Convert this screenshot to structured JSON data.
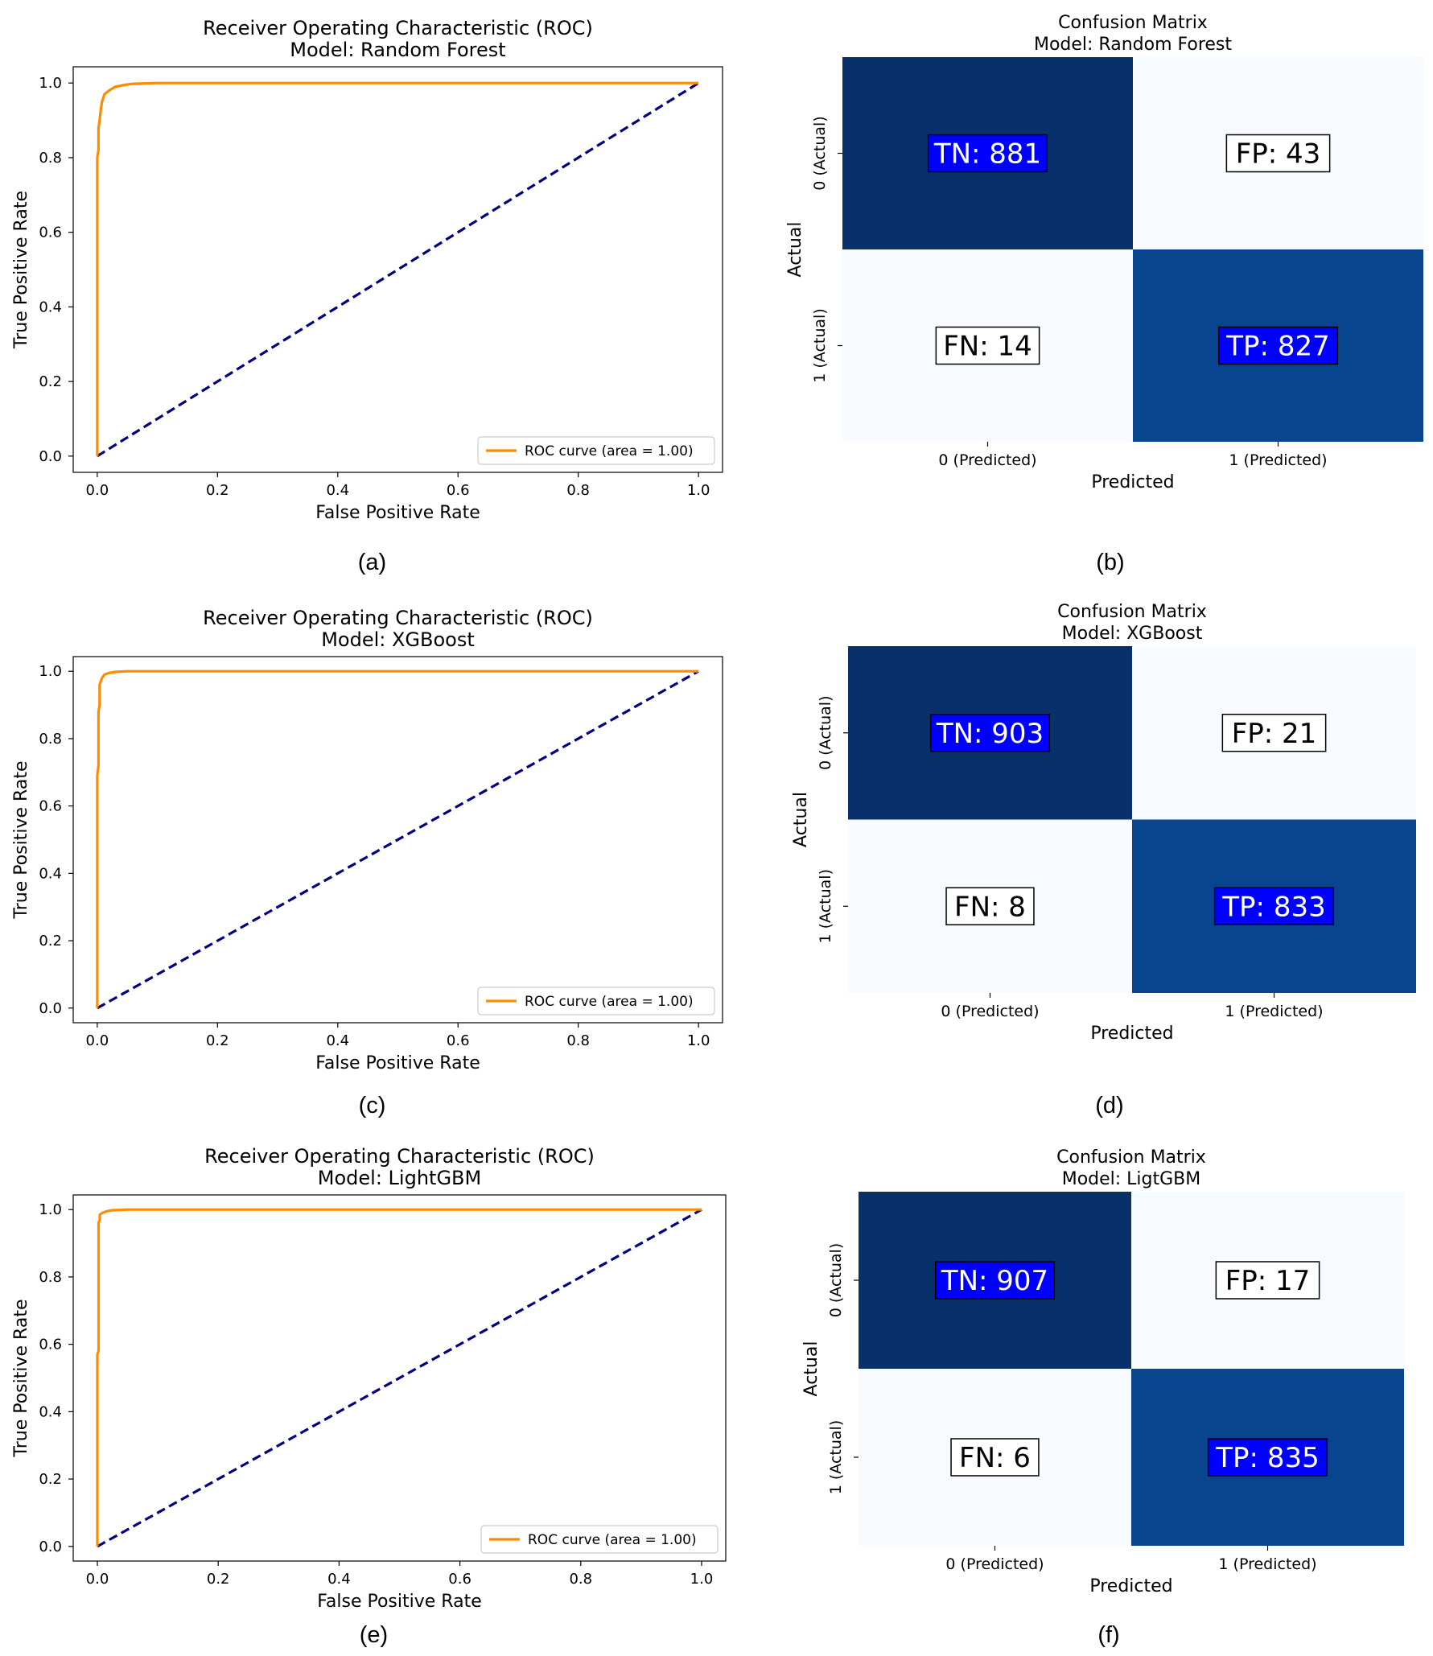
{
  "figure": {
    "panels": [
      {
        "id": "a",
        "caption": "(a)"
      },
      {
        "id": "b",
        "caption": "(b)"
      },
      {
        "id": "c",
        "caption": "(c)"
      },
      {
        "id": "d",
        "caption": "(d)"
      },
      {
        "id": "e",
        "caption": "(e)"
      },
      {
        "id": "f",
        "caption": "(f)"
      }
    ]
  },
  "chart_data": [
    {
      "type": "line",
      "panel": "a",
      "title": "Receiver Operating Characteristic (ROC)",
      "subtitle": "Model: Random Forest",
      "xlabel": "False Positive Rate",
      "ylabel": "True Positive Rate",
      "xlim": [
        0,
        1
      ],
      "ylim": [
        0,
        1
      ],
      "xticks": [
        "0.0",
        "0.2",
        "0.4",
        "0.6",
        "0.8",
        "1.0"
      ],
      "yticks": [
        "0.0",
        "0.2",
        "0.4",
        "0.6",
        "0.8",
        "1.0"
      ],
      "legend": "ROC curve (area = 1.00)",
      "legend_position": "lower-right",
      "series": [
        {
          "name": "ROC curve (area = 1.00)",
          "color": "#ff8c00",
          "x": [
            0,
            0,
            0.002,
            0.002,
            0.004,
            0.006,
            0.008,
            0.012,
            0.02,
            0.03,
            0.045,
            0.06,
            0.1,
            1.0
          ],
          "y": [
            0,
            0.8,
            0.82,
            0.88,
            0.9,
            0.93,
            0.95,
            0.97,
            0.98,
            0.99,
            0.995,
            0.998,
            1.0,
            1.0
          ]
        },
        {
          "name": "chance",
          "color": "#000080",
          "dashed": true,
          "x": [
            0,
            1
          ],
          "y": [
            0,
            1
          ]
        }
      ]
    },
    {
      "type": "heatmap",
      "panel": "b",
      "title": "Confusion Matrix",
      "subtitle": "Model: Random Forest",
      "xlabel": "Predicted",
      "ylabel": "Actual",
      "col_labels": [
        "0 (Predicted)",
        "1 (Predicted)"
      ],
      "row_labels": [
        "0 (Actual)",
        "1 (Actual)"
      ],
      "cells": [
        {
          "label": "TN: 881",
          "value": 881,
          "color": "#08306b",
          "badge": "#0000ff",
          "text_color": "#ffffff"
        },
        {
          "label": "FP: 43",
          "value": 43,
          "color": "#f7fbff",
          "badge": "#ffffff",
          "text_color": "#000000"
        },
        {
          "label": "FN: 14",
          "value": 14,
          "color": "#f7fbff",
          "badge": "#ffffff",
          "text_color": "#000000"
        },
        {
          "label": "TP: 827",
          "value": 827,
          "color": "#08458e",
          "badge": "#0000ff",
          "text_color": "#ffffff"
        }
      ]
    },
    {
      "type": "line",
      "panel": "c",
      "title": "Receiver Operating Characteristic (ROC)",
      "subtitle": "Model: XGBoost",
      "xlabel": "False Positive Rate",
      "ylabel": "True Positive Rate",
      "xlim": [
        0,
        1
      ],
      "ylim": [
        0,
        1
      ],
      "xticks": [
        "0.0",
        "0.2",
        "0.4",
        "0.6",
        "0.8",
        "1.0"
      ],
      "yticks": [
        "0.0",
        "0.2",
        "0.4",
        "0.6",
        "0.8",
        "1.0"
      ],
      "legend": "ROC curve (area = 1.00)",
      "legend_position": "lower-right",
      "series": [
        {
          "name": "ROC curve (area = 1.00)",
          "color": "#ff8c00",
          "x": [
            0,
            0,
            0.002,
            0.002,
            0.004,
            0.004,
            0.008,
            0.012,
            0.02,
            0.03,
            0.05,
            1.0
          ],
          "y": [
            0,
            0.69,
            0.72,
            0.88,
            0.9,
            0.96,
            0.98,
            0.99,
            0.995,
            0.998,
            1.0,
            1.0
          ]
        },
        {
          "name": "chance",
          "color": "#000080",
          "dashed": true,
          "x": [
            0,
            1
          ],
          "y": [
            0,
            1
          ]
        }
      ]
    },
    {
      "type": "heatmap",
      "panel": "d",
      "title": "Confusion Matrix",
      "subtitle": "Model: XGBoost",
      "xlabel": "Predicted",
      "ylabel": "Actual",
      "col_labels": [
        "0 (Predicted)",
        "1 (Predicted)"
      ],
      "row_labels": [
        "0 (Actual)",
        "1 (Actual)"
      ],
      "cells": [
        {
          "label": "TN: 903",
          "value": 903,
          "color": "#08306b",
          "badge": "#0000ff",
          "text_color": "#ffffff"
        },
        {
          "label": "FP: 21",
          "value": 21,
          "color": "#f7fbff",
          "badge": "#ffffff",
          "text_color": "#000000"
        },
        {
          "label": "FN: 8",
          "value": 8,
          "color": "#f7fbff",
          "badge": "#ffffff",
          "text_color": "#000000"
        },
        {
          "label": "TP: 833",
          "value": 833,
          "color": "#08458e",
          "badge": "#0000ff",
          "text_color": "#ffffff"
        }
      ]
    },
    {
      "type": "line",
      "panel": "e",
      "title": "Receiver Operating Characteristic (ROC)",
      "subtitle": "Model: LightGBM",
      "xlabel": "False Positive Rate",
      "ylabel": "True Positive Rate",
      "xlim": [
        0,
        1
      ],
      "ylim": [
        0,
        1
      ],
      "xticks": [
        "0.0",
        "0.2",
        "0.4",
        "0.6",
        "0.8",
        "1.0"
      ],
      "yticks": [
        "0.0",
        "0.2",
        "0.4",
        "0.6",
        "0.8",
        "1.0"
      ],
      "legend": "ROC curve (area = 1.00)",
      "legend_position": "lower-right",
      "series": [
        {
          "name": "ROC curve (area = 1.00)",
          "color": "#ff8c00",
          "x": [
            0,
            0,
            0.002,
            0.002,
            0.004,
            0.004,
            0.008,
            0.015,
            0.025,
            0.05,
            1.0
          ],
          "y": [
            0,
            0.57,
            0.58,
            0.96,
            0.97,
            0.985,
            0.99,
            0.995,
            0.998,
            1.0,
            1.0
          ]
        },
        {
          "name": "chance",
          "color": "#000080",
          "dashed": true,
          "x": [
            0,
            1
          ],
          "y": [
            0,
            1
          ]
        }
      ]
    },
    {
      "type": "heatmap",
      "panel": "f",
      "title": "Confusion Matrix",
      "subtitle": "Model: LigtGBM",
      "xlabel": "Predicted",
      "ylabel": "Actual",
      "col_labels": [
        "0 (Predicted)",
        "1 (Predicted)"
      ],
      "row_labels": [
        "0 (Actual)",
        "1 (Actual)"
      ],
      "cells": [
        {
          "label": "TN: 907",
          "value": 907,
          "color": "#08306b",
          "badge": "#0000ff",
          "text_color": "#ffffff"
        },
        {
          "label": "FP: 17",
          "value": 17,
          "color": "#f7fbff",
          "badge": "#ffffff",
          "text_color": "#000000"
        },
        {
          "label": "FN: 6",
          "value": 6,
          "color": "#f7fbff",
          "badge": "#ffffff",
          "text_color": "#000000"
        },
        {
          "label": "TP: 835",
          "value": 835,
          "color": "#08458e",
          "badge": "#0000ff",
          "text_color": "#ffffff"
        }
      ]
    }
  ]
}
